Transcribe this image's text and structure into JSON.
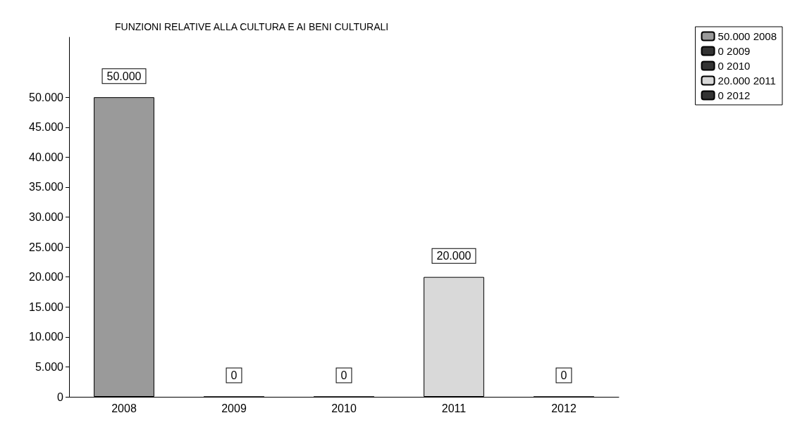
{
  "chart_data": {
    "type": "bar",
    "title": "FUNZIONI RELATIVE ALLA CULTURA E AI BENI CULTURALI",
    "categories": [
      "2008",
      "2009",
      "2010",
      "2011",
      "2012"
    ],
    "stacked": true,
    "series": [
      {
        "name": "50.000 2008",
        "color": "#9a9a9a",
        "values": [
          50000,
          null,
          null,
          null,
          null
        ],
        "value_labels": [
          "50.000",
          null,
          null,
          null,
          null
        ]
      },
      {
        "name": "0 2009",
        "color": "#333333",
        "values": [
          null,
          0,
          null,
          null,
          null
        ],
        "value_labels": [
          null,
          "0",
          null,
          null,
          null
        ]
      },
      {
        "name": "0 2010",
        "color": "#333333",
        "values": [
          null,
          null,
          0,
          null,
          null
        ],
        "value_labels": [
          null,
          null,
          "0",
          null,
          null
        ]
      },
      {
        "name": "20.000 2011",
        "color": "#d9d9d9",
        "values": [
          null,
          null,
          null,
          20000,
          null
        ],
        "value_labels": [
          null,
          null,
          null,
          "20.000",
          null
        ]
      },
      {
        "name": "0 2012",
        "color": "#333333",
        "values": [
          null,
          null,
          null,
          null,
          0
        ],
        "value_labels": [
          null,
          null,
          null,
          null,
          "0"
        ]
      }
    ],
    "ylim": [
      0,
      60000
    ],
    "yticks": [
      {
        "value": 0,
        "label": "0"
      },
      {
        "value": 5000,
        "label": "5.000"
      },
      {
        "value": 10000,
        "label": "10.000"
      },
      {
        "value": 15000,
        "label": "15.000"
      },
      {
        "value": 20000,
        "label": "20.000"
      },
      {
        "value": 25000,
        "label": "25.000"
      },
      {
        "value": 30000,
        "label": "30.000"
      },
      {
        "value": 35000,
        "label": "35.000"
      },
      {
        "value": 40000,
        "label": "40.000"
      },
      {
        "value": 45000,
        "label": "45.000"
      },
      {
        "value": 50000,
        "label": "50.000"
      }
    ],
    "grid": false,
    "legend": "top right"
  }
}
